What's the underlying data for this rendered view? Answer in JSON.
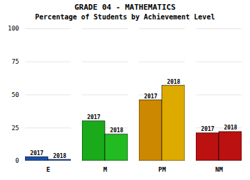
{
  "chart_data": {
    "type": "bar",
    "title": "GRADE 04 - MATHEMATICS",
    "subtitle": "Percentage of Students by Achievement Level",
    "categories": [
      "E",
      "M",
      "PM",
      "NM"
    ],
    "series": [
      {
        "name": "2017",
        "colors": [
          "#1a4faa",
          "#1aaa1a",
          "#cc8800",
          "#bb1111"
        ],
        "values": [
          3,
          30,
          46,
          21
        ]
      },
      {
        "name": "2018",
        "colors": [
          "#3366cc",
          "#22bb22",
          "#ddaa00",
          "#bb1111"
        ],
        "values": [
          1,
          20,
          57,
          22
        ]
      }
    ],
    "ylim": [
      0,
      100
    ],
    "yticks": [
      0,
      25,
      50,
      75,
      100
    ],
    "grid": true
  }
}
